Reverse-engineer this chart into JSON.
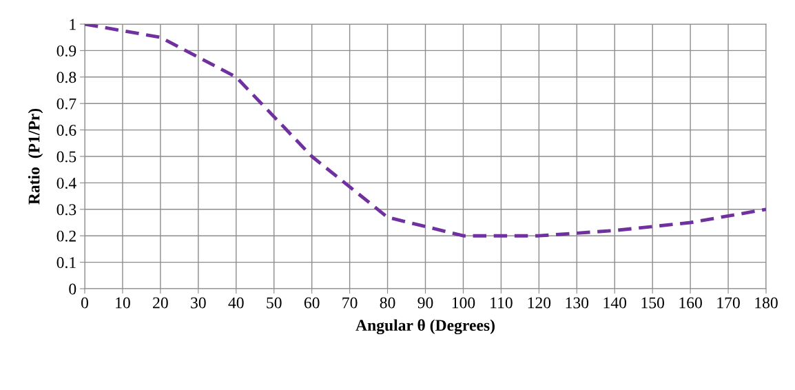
{
  "chart_data": {
    "type": "line",
    "xlabel": "Angular θ (Degrees)",
    "ylabel": "Ratio  (P1/Pr)",
    "x": [
      0,
      10,
      20,
      30,
      40,
      50,
      60,
      70,
      80,
      90,
      100,
      110,
      120,
      130,
      140,
      150,
      160,
      170,
      180
    ],
    "series": [
      {
        "color": "#7030a0",
        "values": [
          1.0,
          0.975,
          0.95,
          0.875,
          0.8,
          0.65,
          0.5,
          0.385,
          0.27,
          0.235,
          0.2,
          0.2,
          0.2,
          0.21,
          0.22,
          0.235,
          0.25,
          0.275,
          0.3
        ]
      }
    ],
    "xlim": [
      0,
      180
    ],
    "xticks": [
      0,
      10,
      20,
      30,
      40,
      50,
      60,
      70,
      80,
      90,
      100,
      110,
      120,
      130,
      140,
      150,
      160,
      170,
      180
    ],
    "ylim": [
      0,
      1
    ],
    "yticks": [
      0,
      0.1,
      0.2,
      0.3,
      0.4,
      0.5,
      0.6,
      0.7,
      0.8,
      0.9,
      1
    ],
    "grid": true,
    "line_style": "dashed",
    "marker": "none",
    "legend": false
  }
}
